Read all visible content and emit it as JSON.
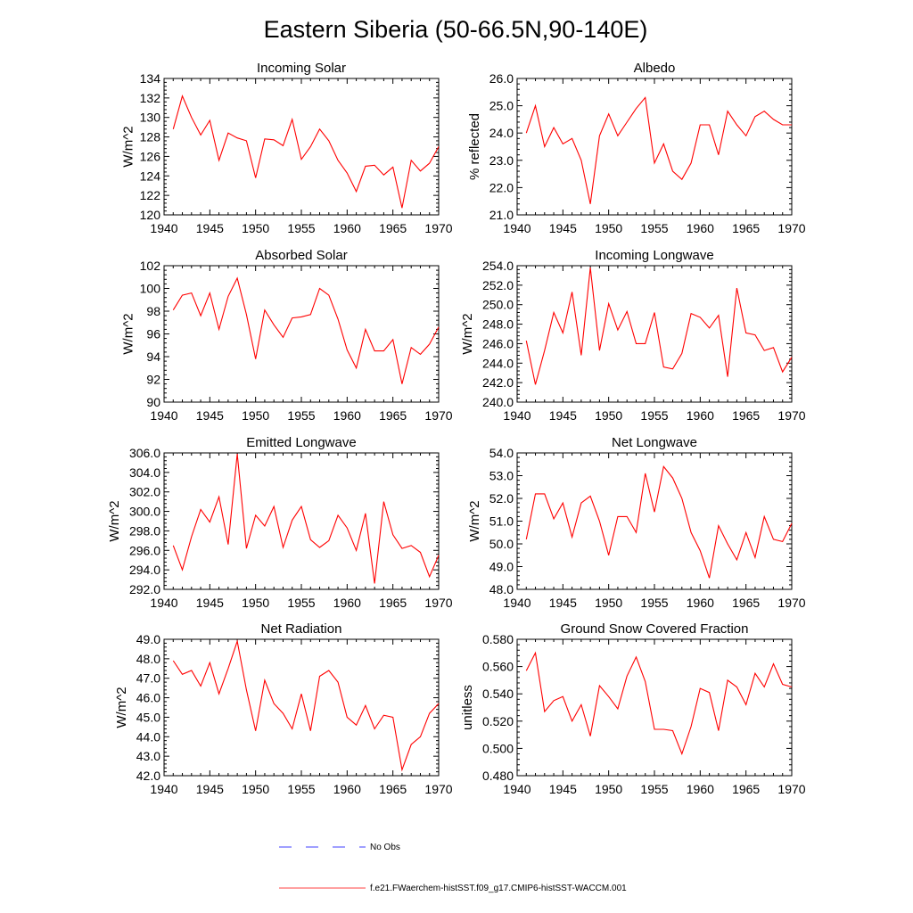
{
  "title": "Eastern Siberia (50-66.5N,90-140E)",
  "colors": {
    "model": "#ff0000",
    "obs": "#0000ff",
    "axis": "#000000"
  },
  "legend": [
    {
      "label": "No Obs",
      "color": "#0000ff",
      "style": "dashed"
    },
    {
      "label": "f.e21.FWaerchem-histSST.f09_g17.CMIP6-histSST-WACCM.001",
      "color": "#ff0000",
      "style": "solid"
    }
  ],
  "chart_data": [
    {
      "type": "line",
      "title": "Incoming Solar",
      "ylabel": "W/m^2",
      "xlim": [
        1940,
        1970
      ],
      "xticks": [
        "1940",
        "1945",
        "1950",
        "1955",
        "1960",
        "1965",
        "1970"
      ],
      "ylim": [
        120,
        134
      ],
      "yticks": [
        "120",
        "122",
        "124",
        "126",
        "128",
        "130",
        "132",
        "134"
      ],
      "x": [
        1941,
        1942,
        1943,
        1944,
        1945,
        1946,
        1947,
        1948,
        1949,
        1950,
        1951,
        1952,
        1953,
        1954,
        1955,
        1956,
        1957,
        1958,
        1959,
        1960,
        1961,
        1962,
        1963,
        1964,
        1965,
        1966,
        1967,
        1968,
        1969,
        1970
      ],
      "series": [
        {
          "values": [
            128.8,
            132.2,
            130.0,
            128.2,
            129.7,
            125.6,
            128.4,
            127.9,
            127.6,
            123.8,
            127.8,
            127.7,
            127.1,
            129.8,
            125.7,
            127.0,
            128.8,
            127.6,
            125.6,
            124.3,
            122.4,
            125.0,
            125.1,
            124.1,
            124.9,
            120.7,
            125.6,
            124.5,
            125.3,
            127.0
          ]
        }
      ]
    },
    {
      "type": "line",
      "title": "Albedo",
      "ylabel": "% reflected",
      "xlim": [
        1940,
        1970
      ],
      "xticks": [
        "1940",
        "1945",
        "1950",
        "1955",
        "1960",
        "1965",
        "1970"
      ],
      "ylim": [
        21.0,
        26.0
      ],
      "yticks": [
        "21.0",
        "22.0",
        "23.0",
        "24.0",
        "25.0",
        "26.0"
      ],
      "x": [
        1941,
        1942,
        1943,
        1944,
        1945,
        1946,
        1947,
        1948,
        1949,
        1950,
        1951,
        1952,
        1953,
        1954,
        1955,
        1956,
        1957,
        1958,
        1959,
        1960,
        1961,
        1962,
        1963,
        1964,
        1965,
        1966,
        1967,
        1968,
        1969,
        1970
      ],
      "series": [
        {
          "values": [
            24.0,
            25.0,
            23.5,
            24.2,
            23.6,
            23.8,
            23.0,
            21.4,
            23.9,
            24.7,
            23.9,
            24.4,
            24.9,
            25.3,
            22.9,
            23.6,
            22.6,
            22.3,
            22.9,
            24.3,
            24.3,
            23.2,
            24.8,
            24.3,
            23.9,
            24.6,
            24.8,
            24.5,
            24.3,
            24.3
          ]
        }
      ]
    },
    {
      "type": "line",
      "title": "Absorbed Solar",
      "ylabel": "W/m^2",
      "xlim": [
        1940,
        1970
      ],
      "xticks": [
        "1940",
        "1945",
        "1950",
        "1955",
        "1960",
        "1965",
        "1970"
      ],
      "ylim": [
        90,
        102
      ],
      "yticks": [
        "90",
        "92",
        "94",
        "96",
        "98",
        "100",
        "102"
      ],
      "x": [
        1941,
        1942,
        1943,
        1944,
        1945,
        1946,
        1947,
        1948,
        1949,
        1950,
        1951,
        1952,
        1953,
        1954,
        1955,
        1956,
        1957,
        1958,
        1959,
        1960,
        1961,
        1962,
        1963,
        1964,
        1965,
        1966,
        1967,
        1968,
        1969,
        1970
      ],
      "series": [
        {
          "values": [
            98.1,
            99.4,
            99.6,
            97.6,
            99.6,
            96.4,
            99.3,
            100.9,
            97.7,
            93.8,
            98.1,
            96.8,
            95.7,
            97.4,
            97.5,
            97.7,
            100.0,
            99.4,
            97.3,
            94.6,
            93.0,
            96.4,
            94.5,
            94.5,
            95.5,
            91.6,
            94.8,
            94.2,
            95.1,
            96.6
          ]
        }
      ]
    },
    {
      "type": "line",
      "title": "Incoming Longwave",
      "ylabel": "W/m^2",
      "xlim": [
        1940,
        1970
      ],
      "xticks": [
        "1940",
        "1945",
        "1950",
        "1955",
        "1960",
        "1965",
        "1970"
      ],
      "ylim": [
        240.0,
        254.0
      ],
      "yticks": [
        "240.0",
        "242.0",
        "244.0",
        "246.0",
        "248.0",
        "250.0",
        "252.0",
        "254.0"
      ],
      "x": [
        1941,
        1942,
        1943,
        1944,
        1945,
        1946,
        1947,
        1948,
        1949,
        1950,
        1951,
        1952,
        1953,
        1954,
        1955,
        1956,
        1957,
        1958,
        1959,
        1960,
        1961,
        1962,
        1963,
        1964,
        1965,
        1966,
        1967,
        1968,
        1969,
        1970
      ],
      "series": [
        {
          "values": [
            246.3,
            241.8,
            245.3,
            249.2,
            247.1,
            251.3,
            244.8,
            253.8,
            245.3,
            250.1,
            247.4,
            249.3,
            246.0,
            246.0,
            249.2,
            243.6,
            243.4,
            245.0,
            249.1,
            248.7,
            247.6,
            248.9,
            242.6,
            251.7,
            247.1,
            246.9,
            245.3,
            245.6,
            243.1,
            244.6
          ]
        }
      ]
    },
    {
      "type": "line",
      "title": "Emitted Longwave",
      "ylabel": "W/m^2",
      "xlim": [
        1940,
        1970
      ],
      "xticks": [
        "1940",
        "1945",
        "1950",
        "1955",
        "1960",
        "1965",
        "1970"
      ],
      "ylim": [
        292.0,
        306.0
      ],
      "yticks": [
        "292.0",
        "294.0",
        "296.0",
        "298.0",
        "300.0",
        "302.0",
        "304.0",
        "306.0"
      ],
      "x": [
        1941,
        1942,
        1943,
        1944,
        1945,
        1946,
        1947,
        1948,
        1949,
        1950,
        1951,
        1952,
        1953,
        1954,
        1955,
        1956,
        1957,
        1958,
        1959,
        1960,
        1961,
        1962,
        1963,
        1964,
        1965,
        1966,
        1967,
        1968,
        1969,
        1970
      ],
      "series": [
        {
          "values": [
            296.5,
            294.0,
            297.4,
            300.2,
            298.9,
            301.5,
            296.6,
            305.9,
            296.2,
            299.6,
            298.5,
            300.5,
            296.3,
            299.1,
            300.5,
            297.1,
            296.3,
            297.0,
            299.6,
            298.3,
            296.0,
            299.8,
            292.6,
            301.0,
            297.6,
            296.2,
            296.5,
            295.8,
            293.3,
            295.5
          ]
        }
      ]
    },
    {
      "type": "line",
      "title": "Net Longwave",
      "ylabel": "W/m^2",
      "xlim": [
        1940,
        1970
      ],
      "xticks": [
        "1940",
        "1945",
        "1950",
        "1955",
        "1960",
        "1965",
        "1970"
      ],
      "ylim": [
        48.0,
        54.0
      ],
      "yticks": [
        "48.0",
        "49.0",
        "50.0",
        "51.0",
        "52.0",
        "53.0",
        "54.0"
      ],
      "x": [
        1941,
        1942,
        1943,
        1944,
        1945,
        1946,
        1947,
        1948,
        1949,
        1950,
        1951,
        1952,
        1953,
        1954,
        1955,
        1956,
        1957,
        1958,
        1959,
        1960,
        1961,
        1962,
        1963,
        1964,
        1965,
        1966,
        1967,
        1968,
        1969,
        1970
      ],
      "series": [
        {
          "values": [
            50.2,
            52.2,
            52.2,
            51.1,
            51.8,
            50.3,
            51.8,
            52.1,
            51.0,
            49.5,
            51.2,
            51.2,
            50.5,
            53.1,
            51.4,
            53.4,
            52.9,
            52.0,
            50.5,
            49.7,
            48.5,
            50.8,
            50.0,
            49.3,
            50.5,
            49.4,
            51.2,
            50.2,
            50.1,
            50.9
          ]
        }
      ]
    },
    {
      "type": "line",
      "title": "Net Radiation",
      "ylabel": "W/m^2",
      "xlim": [
        1940,
        1970
      ],
      "xticks": [
        "1940",
        "1945",
        "1950",
        "1955",
        "1960",
        "1965",
        "1970"
      ],
      "ylim": [
        42.0,
        49.0
      ],
      "yticks": [
        "42.0",
        "43.0",
        "44.0",
        "45.0",
        "46.0",
        "47.0",
        "48.0",
        "49.0"
      ],
      "x": [
        1941,
        1942,
        1943,
        1944,
        1945,
        1946,
        1947,
        1948,
        1949,
        1950,
        1951,
        1952,
        1953,
        1954,
        1955,
        1956,
        1957,
        1958,
        1959,
        1960,
        1961,
        1962,
        1963,
        1964,
        1965,
        1966,
        1967,
        1968,
        1969,
        1970
      ],
      "series": [
        {
          "values": [
            47.9,
            47.2,
            47.4,
            46.6,
            47.8,
            46.2,
            47.5,
            48.9,
            46.4,
            44.3,
            46.9,
            45.7,
            45.2,
            44.4,
            46.2,
            44.3,
            47.1,
            47.4,
            46.8,
            45.0,
            44.6,
            45.6,
            44.4,
            45.1,
            45.0,
            42.3,
            43.6,
            44.0,
            45.2,
            45.7
          ]
        }
      ]
    },
    {
      "type": "line",
      "title": "Ground Snow Covered Fraction",
      "ylabel": "unitless",
      "xlim": [
        1940,
        1970
      ],
      "xticks": [
        "1940",
        "1945",
        "1950",
        "1955",
        "1960",
        "1965",
        "1970"
      ],
      "ylim": [
        0.48,
        0.58
      ],
      "yticks": [
        "0.480",
        "0.500",
        "0.520",
        "0.540",
        "0.560",
        "0.580"
      ],
      "x": [
        1941,
        1942,
        1943,
        1944,
        1945,
        1946,
        1947,
        1948,
        1949,
        1950,
        1951,
        1952,
        1953,
        1954,
        1955,
        1956,
        1957,
        1958,
        1959,
        1960,
        1961,
        1962,
        1963,
        1964,
        1965,
        1966,
        1967,
        1968,
        1969,
        1970
      ],
      "series": [
        {
          "values": [
            0.557,
            0.57,
            0.527,
            0.535,
            0.538,
            0.52,
            0.532,
            0.509,
            0.546,
            0.538,
            0.529,
            0.553,
            0.567,
            0.549,
            0.514,
            0.514,
            0.513,
            0.496,
            0.516,
            0.544,
            0.541,
            0.513,
            0.55,
            0.545,
            0.532,
            0.555,
            0.545,
            0.562,
            0.547,
            0.545
          ]
        }
      ]
    }
  ]
}
